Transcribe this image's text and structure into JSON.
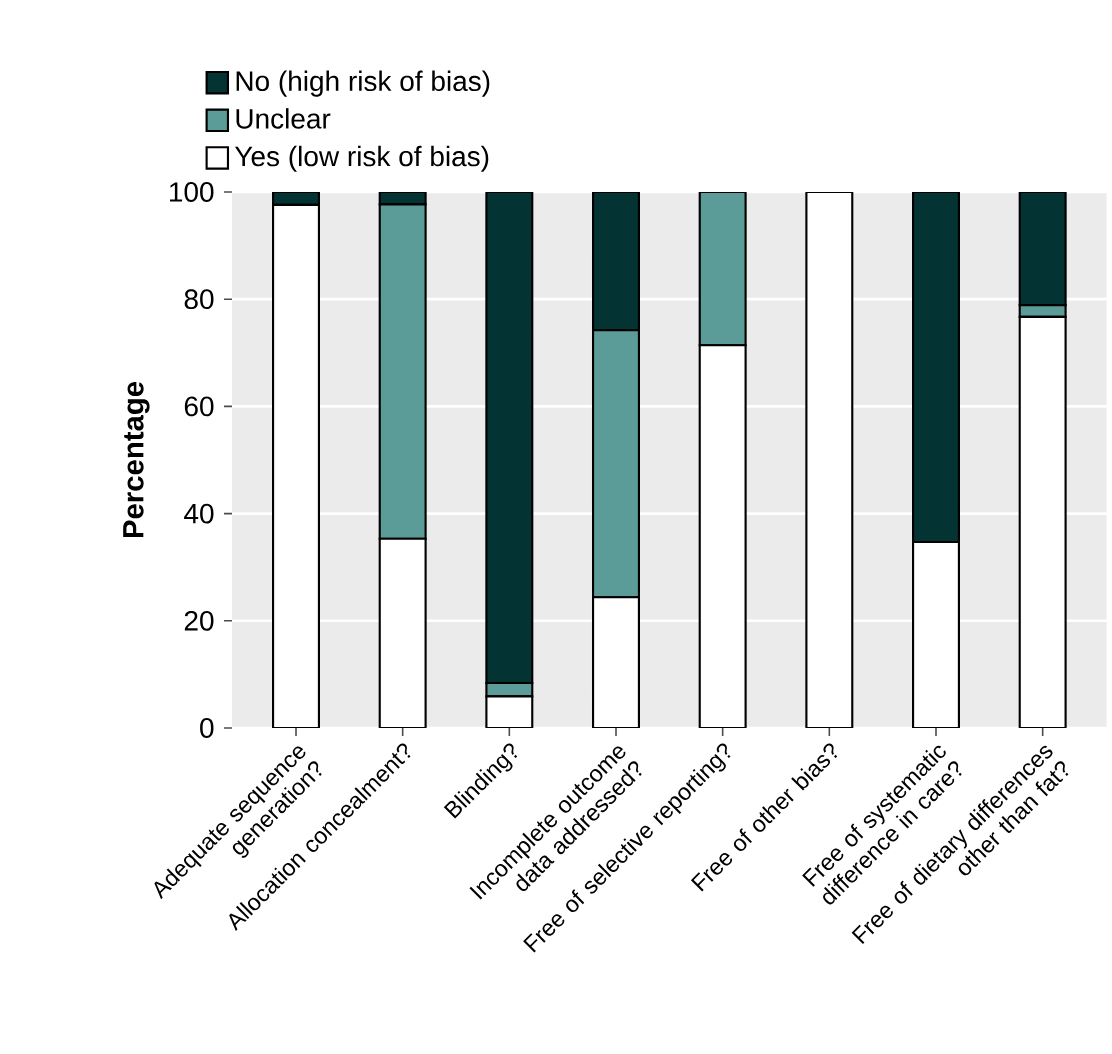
{
  "chart_data": {
    "type": "bar",
    "stacked": true,
    "ylabel": "Percentage",
    "categories": [
      "Adequate sequence generation?",
      "Allocation concealment?",
      "Blinding?",
      "Incomplete outcome data addressed?",
      "Free of selective reporting?",
      "Free of other bias?",
      "Free of systematic difference in care?",
      "Free of dietary differences other than fat?"
    ],
    "series": [
      {
        "name": "Yes (low risk of bias)",
        "color": "#ffffff",
        "values": [
          97.6,
          35.3,
          5.9,
          24.4,
          71.4,
          100,
          34.7,
          76.7
        ]
      },
      {
        "name": "Unclear",
        "color": "#5b9c99",
        "values": [
          0,
          62.4,
          2.5,
          49.8,
          28.6,
          0,
          0,
          2.2
        ]
      },
      {
        "name": "No (high risk of bias)",
        "color": "#033333",
        "values": [
          2.4,
          2.3,
          91.6,
          25.8,
          0,
          0,
          65.3,
          21.1
        ]
      }
    ],
    "ylim": [
      0,
      100
    ],
    "yticks": [
      0,
      20,
      40,
      60,
      80,
      100
    ],
    "grid": "y",
    "legend": "top left"
  }
}
